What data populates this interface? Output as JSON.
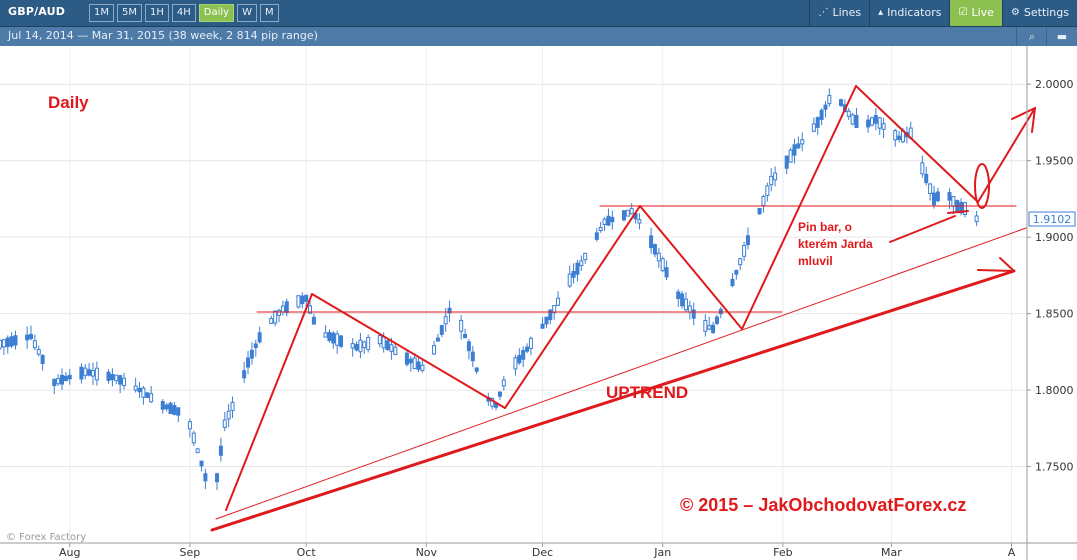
{
  "toolbar": {
    "symbol": "GBP/AUD",
    "timeframes": [
      "1M",
      "5M",
      "1H",
      "4H",
      "Daily",
      "W",
      "M"
    ],
    "active_timeframe": "Daily",
    "lines_label": "Lines",
    "indicators_label": "Indicators",
    "live_label": "Live",
    "settings_label": "Settings"
  },
  "infobar": {
    "range_text": "Jul 14, 2014 — Mar 31, 2015 (38 week, 2 814 pip range)"
  },
  "watermark": "© Forex Factory",
  "colors": {
    "toolbar": "#2c5b86",
    "infobar": "#4d7aa6",
    "active": "#8cc152",
    "candle": "#3d7fd3",
    "annotation": "#e0191c"
  },
  "chart_data": {
    "type": "candlestick",
    "price_label": "1.9102",
    "y_ticks": [
      "2.0000",
      "1.9500",
      "1.9000",
      "1.8500",
      "1.8000",
      "1.7500"
    ],
    "y_values": [
      2.0,
      1.95,
      1.9,
      1.85,
      1.8,
      1.75
    ],
    "ylim": [
      1.7,
      2.025
    ],
    "x_ticks": [
      "Aug",
      "Sep",
      "Oct",
      "Nov",
      "Dec",
      "Jan",
      "Feb",
      "Mar",
      "A"
    ],
    "x_tick_days": [
      18,
      49,
      79,
      110,
      140,
      171,
      202,
      230,
      261
    ],
    "xlim": [
      0,
      265
    ],
    "grid": true,
    "waypoints": [
      [
        0,
        1.83
      ],
      [
        8,
        1.835
      ],
      [
        14,
        1.805
      ],
      [
        22,
        1.812
      ],
      [
        30,
        1.808
      ],
      [
        36,
        1.8
      ],
      [
        42,
        1.79
      ],
      [
        46,
        1.786
      ],
      [
        49,
        1.777
      ],
      [
        52,
        1.752
      ],
      [
        55,
        1.725
      ],
      [
        58,
        1.778
      ],
      [
        61,
        1.795
      ],
      [
        64,
        1.818
      ],
      [
        68,
        1.84
      ],
      [
        73,
        1.853
      ],
      [
        77,
        1.858
      ],
      [
        79,
        1.86
      ],
      [
        82,
        1.838
      ],
      [
        86,
        1.834
      ],
      [
        92,
        1.828
      ],
      [
        98,
        1.833
      ],
      [
        104,
        1.822
      ],
      [
        110,
        1.813
      ],
      [
        113,
        1.833
      ],
      [
        116,
        1.852
      ],
      [
        119,
        1.842
      ],
      [
        122,
        1.822
      ],
      [
        125,
        1.796
      ],
      [
        128,
        1.79
      ],
      [
        131,
        1.812
      ],
      [
        135,
        1.823
      ],
      [
        139,
        1.838
      ],
      [
        143,
        1.853
      ],
      [
        147,
        1.872
      ],
      [
        150,
        1.883
      ],
      [
        153,
        1.896
      ],
      [
        156,
        1.91
      ],
      [
        160,
        1.913
      ],
      [
        163,
        1.917
      ],
      [
        166,
        1.907
      ],
      [
        169,
        1.892
      ],
      [
        172,
        1.877
      ],
      [
        175,
        1.862
      ],
      [
        178,
        1.853
      ],
      [
        181,
        1.843
      ],
      [
        184,
        1.84
      ],
      [
        187,
        1.857
      ],
      [
        190,
        1.877
      ],
      [
        193,
        1.898
      ],
      [
        196,
        1.917
      ],
      [
        199,
        1.937
      ],
      [
        202,
        1.945
      ],
      [
        205,
        1.957
      ],
      [
        208,
        1.965
      ],
      [
        211,
        1.975
      ],
      [
        214,
        1.99
      ],
      [
        217,
        1.988
      ],
      [
        220,
        1.977
      ],
      [
        223,
        1.973
      ],
      [
        226,
        1.977
      ],
      [
        229,
        1.97
      ],
      [
        232,
        1.965
      ],
      [
        235,
        1.968
      ],
      [
        238,
        1.945
      ],
      [
        241,
        1.925
      ],
      [
        244,
        1.93
      ],
      [
        247,
        1.92
      ],
      [
        250,
        1.918
      ],
      [
        252,
        1.912
      ]
    ],
    "annotations": {
      "daily_label": "Daily",
      "uptrend_label": "UPTREND",
      "pinbar_lines": [
        "Pin bar, o",
        "kterém Jarda",
        "mluvil"
      ],
      "copyright": "© 2015 – JakObchodovatForex.cz"
    }
  }
}
